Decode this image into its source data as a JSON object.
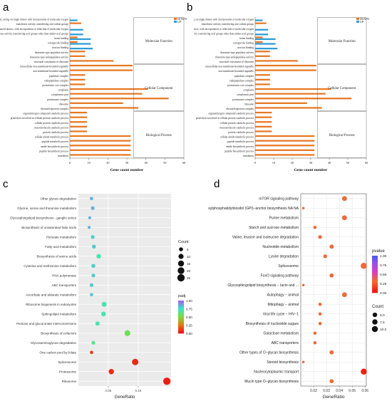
{
  "figure": {
    "panel_labels": [
      "a",
      "b",
      "c",
      "d"
    ]
  },
  "chart_data": [
    {
      "panel": "a",
      "type": "bar",
      "orientation": "horizontal",
      "categories": [
        "translation",
        "peptide biosynthetic process",
        "amide biosynthetic process",
        "peptide metabolic process",
        "cellular amide metabolic process",
        "protein catabolic process",
        "macromolecule catabolic process",
        "cellular protein catabolic process",
        "proteolysis involved in cellular protein catabolic process",
        "organonitrogen compound catabolic process",
        "ribonucleoprotein complex",
        "ribosome",
        "proteasome complex",
        "cytoplasmic part",
        "cytoplasm",
        "proteasome core complex",
        "endopeptidase complex",
        "peptidase complex",
        "non-membrane-bounded organelle",
        "intracellular non-membrane-bounded organelle",
        "structural constituent of ribosome",
        "threonine-type endopeptidase activity",
        "threonine-type peptidase activity",
        "iron ion binding",
        "tetrapyrrole binding",
        "heme binding",
        "transferase activity, transferring acyl groups other than amino-acyl groups",
        "oxidoreductase activity, acting on paired donors, with incorporation or reduction of molecular oxygen",
        "transferase activity, transferring one-carbon groups",
        "oxidoreductase activity, acting on single donors with incorporation of molecular oxygen"
      ],
      "series": [
        {
          "name": "DOWN",
          "color": "#e87722",
          "values": [
            32,
            32,
            32,
            32,
            32,
            9,
            9,
            9,
            9,
            9,
            36,
            28,
            52,
            38,
            41,
            8,
            8,
            8,
            33,
            33,
            23,
            8,
            8,
            0,
            4,
            4,
            0,
            0,
            6,
            0
          ]
        },
        {
          "name": "UP",
          "color": "#2b9bd6",
          "values": [
            0,
            0,
            0,
            0,
            0,
            0,
            0,
            0,
            0,
            0,
            0,
            0,
            0,
            0,
            0,
            0,
            0,
            0,
            0,
            0,
            0,
            0,
            0,
            12,
            11,
            11,
            7,
            7,
            0,
            4
          ]
        }
      ],
      "xlabel": "Gene count number",
      "xlim": [
        0,
        60
      ],
      "xticks": [
        "0",
        "10",
        "20",
        "30",
        "40",
        "50",
        "60"
      ],
      "groups": [
        "Molecular Function",
        "Cellular Component",
        "Biological Process"
      ],
      "legend": "top-right"
    },
    {
      "panel": "b",
      "type": "bar",
      "orientation": "horizontal",
      "categories": [
        "translation",
        "peptide biosynthetic process",
        "amide biosynthetic process",
        "peptide metabolic process",
        "cellular amide metabolic process",
        "protein catabolic process",
        "macromolecule catabolic process",
        "cellular protein catabolic process",
        "proteolysis involved in cellular protein catabolic process",
        "organonitrogen compound catabolic process",
        "ribonucleoprotein complex",
        "ribosome",
        "proteasome complex",
        "cytoplasmic part",
        "cytoplasm",
        "proteasome core complex",
        "endopeptidase complex",
        "peptidase complex",
        "non-membrane-bounded organelle",
        "intracellular non-membrane-bounded organelle",
        "structural constituent of ribosome",
        "threonine-type endopeptidase activity",
        "threonine-type peptidase activity",
        "iron ion binding",
        "tetrapyrrole binding",
        "heme binding",
        "transferase activity, transferring acyl groups other than amino-acyl groups",
        "oxidoreductase activity, acting on paired donors, with incorporation or reduction of molecular oxygen",
        "transferase activity, transferring one-carbon groups",
        "oxidoreductase activity, acting on single donors with incorporation of molecular oxygen"
      ],
      "series": [
        {
          "name": "DOWN",
          "color": "#e87722",
          "values": [
            32,
            32,
            32,
            32,
            32,
            9,
            9,
            9,
            9,
            9,
            36,
            28,
            52,
            38,
            41,
            8,
            8,
            8,
            33,
            33,
            23,
            8,
            8,
            0,
            4,
            4,
            0,
            0,
            6,
            0
          ]
        },
        {
          "name": "UP",
          "color": "#2b9bd6",
          "values": [
            0,
            0,
            0,
            0,
            0,
            0,
            0,
            0,
            0,
            0,
            0,
            0,
            0,
            0,
            0,
            0,
            0,
            0,
            0,
            0,
            0,
            0,
            0,
            12,
            11,
            11,
            7,
            7,
            0,
            4
          ]
        }
      ],
      "xlabel": "Gene count number",
      "xlim": [
        0,
        60
      ],
      "xticks": [
        "0",
        "10",
        "20",
        "30",
        "40",
        "50",
        "60"
      ],
      "groups": [
        "Molecular Function",
        "Cellular Component",
        "Biological Process"
      ],
      "legend": "top-right"
    },
    {
      "panel": "c",
      "type": "scatter",
      "categories": [
        "Other glycan degradation",
        "Glycine, serine and threonine metabolism",
        "Glycosphingolipid biosynthesis - ganglio series",
        "Biosynthesis of unsaturated fatty acids",
        "Pyruvate metabolism",
        "Fatty acid metabolism",
        "Biosynthesis of amino acids",
        "Cysteine and methionine metabolism",
        "RNA polymerase",
        "ABC transporters",
        "Ascorbate and aldarate metabolism",
        "Ribosome biogenesis in eukaryotes",
        "Sphingolipid metabolism",
        "Pentose and glucuronate interconversions",
        "Biosynthesis of cofactors",
        "Glycosaminoglycan degradation",
        "One carbon pool by folate",
        "Spliceosome",
        "Proteasome",
        "Ribosome"
      ],
      "x": [
        0.022,
        0.024,
        0.019,
        0.018,
        0.024,
        0.026,
        0.034,
        0.025,
        0.025,
        0.022,
        0.022,
        0.043,
        0.042,
        0.032,
        0.082,
        0.025,
        0.022,
        0.095,
        0.055,
        0.148
      ],
      "count": [
        3,
        4,
        2,
        2,
        4,
        5,
        7,
        5,
        4,
        4,
        3,
        9,
        8,
        6,
        14,
        4,
        3,
        18,
        11,
        25
      ],
      "padj": [
        0.85,
        0.85,
        0.85,
        0.85,
        0.8,
        0.8,
        0.7,
        0.8,
        0.8,
        0.8,
        0.8,
        0.7,
        0.7,
        0.7,
        0.55,
        0.65,
        0.1,
        0.05,
        0.05,
        0.02
      ],
      "xlabel": "GeneRatio",
      "xticks": [
        0.05,
        0.1
      ],
      "xlim": [
        0.0,
        0.155
      ],
      "legend_count": {
        "title": "Count",
        "values": [
          5,
          10,
          15,
          20,
          25
        ]
      },
      "legend_color": {
        "title": "padj",
        "ticks": [
          "1.00",
          "0.75",
          "0.50",
          "0.25",
          "0.00"
        ]
      }
    },
    {
      "panel": "d",
      "type": "scatter",
      "categories": [
        "mTOR signaling pathway",
        "Glycosylphosphatidylinositol (GPI)−anchor biosynthesis NA NA",
        "Purine metabolism",
        "Starch and sucrose metabolism",
        "Valine, leucine and isoleucine degradation",
        "Nucleotide metabolism",
        "Lysine degradation",
        "Spliceosome",
        "FoxO signaling pathway",
        "Glycosphingolipid biosynthesis − lacto and ...",
        "Autophagy − animal",
        "Mitophagy − animal",
        "Viral life cycle − HIV−1",
        "Biosynthesis of nucleotide sugars",
        "Galactose metabolism",
        "ABC transporters",
        "Other types of O−glycan biosynthesis",
        "Steroid biosynthesis",
        "Nucleocytoplasmic transport",
        "Mucin type O−glycan biosynthesis"
      ],
      "x": [
        0.044,
        0.012,
        0.044,
        0.021,
        0.025,
        0.034,
        0.029,
        0.059,
        0.034,
        0.012,
        0.044,
        0.025,
        0.025,
        0.025,
        0.021,
        0.021,
        0.034,
        0.012,
        0.059,
        0.034
      ],
      "count": [
        6,
        1,
        6,
        2,
        3,
        4,
        3,
        10,
        4,
        1,
        6,
        2,
        2,
        2,
        2,
        2,
        4,
        1,
        10,
        4
      ],
      "pvalue": [
        0.6,
        0.8,
        0.6,
        0.6,
        0.6,
        0.6,
        0.6,
        0.6,
        0.6,
        0.6,
        0.6,
        0.6,
        0.6,
        0.6,
        0.6,
        0.6,
        0.6,
        0.6,
        0.05,
        0.3
      ],
      "xlabel": "GeneRatio",
      "xticks": [
        "0.02",
        "0.03",
        "0.04",
        "0.05",
        "0.06"
      ],
      "xlim": [
        0.01,
        0.061
      ],
      "legend_color": {
        "title": "pvalue",
        "ticks": [
          "1.00",
          "0.75",
          "0.50",
          "0.25",
          "0.00"
        ]
      },
      "legend_count": {
        "title": "Count",
        "values": [
          "5.0",
          "7.5",
          "10.0"
        ]
      }
    }
  ]
}
